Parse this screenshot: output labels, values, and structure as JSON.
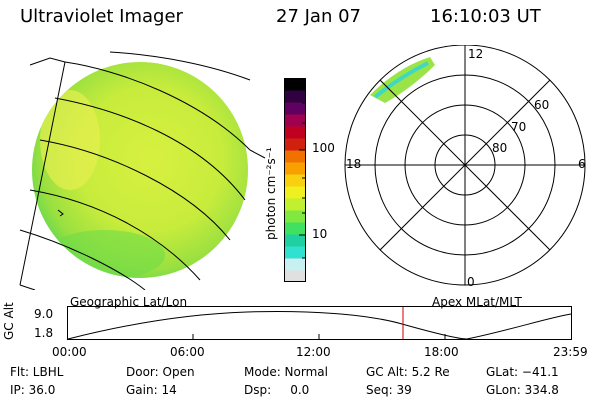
{
  "header": {
    "title": "Ultraviolet Imager",
    "date": "27 Jan 07",
    "time": "16:10:03 UT"
  },
  "colorbar": {
    "unit_label": "photon cm⁻²s⁻¹",
    "tick_100": "100",
    "tick_10": "10",
    "colors": [
      "#e0e0e0",
      "#c8f0f0",
      "#30e0d0",
      "#20d0a0",
      "#40e060",
      "#80e840",
      "#c0f030",
      "#f0f020",
      "#f8d010",
      "#f8a000",
      "#f07000",
      "#d02010",
      "#c00020",
      "#a00050",
      "#600060",
      "#300040",
      "#000000"
    ]
  },
  "polar": {
    "mlt_12": "12",
    "mlt_18": "18",
    "mlt_6": "6",
    "mlt_0": "0",
    "lat_60": "60",
    "lat_70": "70",
    "lat_80": "80"
  },
  "panels": {
    "left_caption": "Geographic Lat/Lon",
    "right_caption": "Apex MLat/MLT"
  },
  "altitude_plot": {
    "ylabel": "GC Alt",
    "y_top": "9.0",
    "y_bottom": "1.8",
    "x_ticks": [
      "00:00",
      "06:00",
      "12:00",
      "18:00",
      "23:59"
    ],
    "current_time_color": "#cc0000"
  },
  "status": {
    "flt": "Flt: LBHL",
    "ip": "IP: 36.0",
    "door": "Door: Open",
    "gain": "Gain: 14",
    "mode": "Mode: Normal",
    "dsp": "Dsp:     0.0",
    "gc_alt": "GC Alt: 5.2 Re",
    "seq": "Seq: 39",
    "glat": "GLat: −41.1",
    "glon": "GLon: 334.8"
  }
}
